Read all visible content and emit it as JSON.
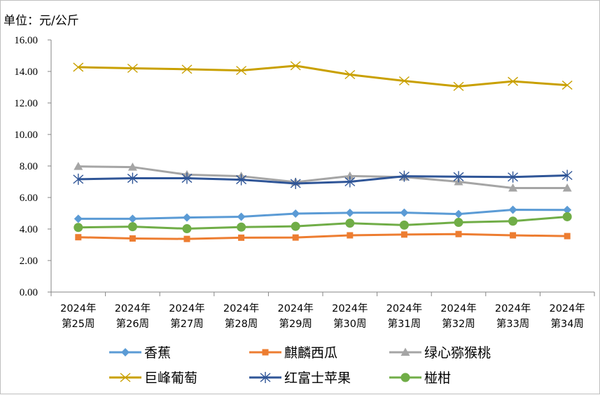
{
  "chart_data": {
    "type": "line",
    "unit_label": "单位：元/公斤",
    "categories": [
      [
        "2024年",
        "第25周"
      ],
      [
        "2024年",
        "第26周"
      ],
      [
        "2024年",
        "第27周"
      ],
      [
        "2024年",
        "第28周"
      ],
      [
        "2024年",
        "第29周"
      ],
      [
        "2024年",
        "第30周"
      ],
      [
        "2024年",
        "第31周"
      ],
      [
        "2024年",
        "第32周"
      ],
      [
        "2024年",
        "第33周"
      ],
      [
        "2024年",
        "第34周"
      ]
    ],
    "ylim": [
      0,
      16
    ],
    "yticks": [
      "0.00",
      "2.00",
      "4.00",
      "6.00",
      "8.00",
      "10.00",
      "12.00",
      "14.00",
      "16.00"
    ],
    "grid": false,
    "legend": "bottom",
    "series": [
      {
        "name": "香蕉",
        "color": "#5b9bd5",
        "marker": "diamond",
        "values": [
          4.65,
          4.65,
          4.73,
          4.78,
          4.98,
          5.03,
          5.04,
          4.95,
          5.22,
          5.21
        ]
      },
      {
        "name": "麒麟西瓜",
        "color": "#ed7d31",
        "marker": "square",
        "values": [
          3.48,
          3.4,
          3.37,
          3.45,
          3.46,
          3.6,
          3.65,
          3.68,
          3.6,
          3.55
        ]
      },
      {
        "name": "绿心猕猴桃",
        "color": "#a5a5a5",
        "marker": "triangle",
        "values": [
          7.97,
          7.93,
          7.45,
          7.35,
          6.98,
          7.36,
          7.3,
          7.0,
          6.6,
          6.6
        ]
      },
      {
        "name": "巨峰葡萄",
        "color": "#c9a000",
        "marker": "x",
        "values": [
          14.27,
          14.2,
          14.14,
          14.06,
          14.36,
          13.8,
          13.4,
          13.05,
          13.37,
          13.13
        ]
      },
      {
        "name": "红富士苹果",
        "color": "#2f5597",
        "marker": "star",
        "values": [
          7.16,
          7.22,
          7.22,
          7.13,
          6.89,
          7.0,
          7.35,
          7.32,
          7.3,
          7.4
        ]
      },
      {
        "name": "椪柑",
        "color": "#70ad47",
        "marker": "circle",
        "values": [
          4.1,
          4.15,
          4.02,
          4.12,
          4.17,
          4.37,
          4.25,
          4.42,
          4.5,
          4.78
        ]
      }
    ]
  }
}
